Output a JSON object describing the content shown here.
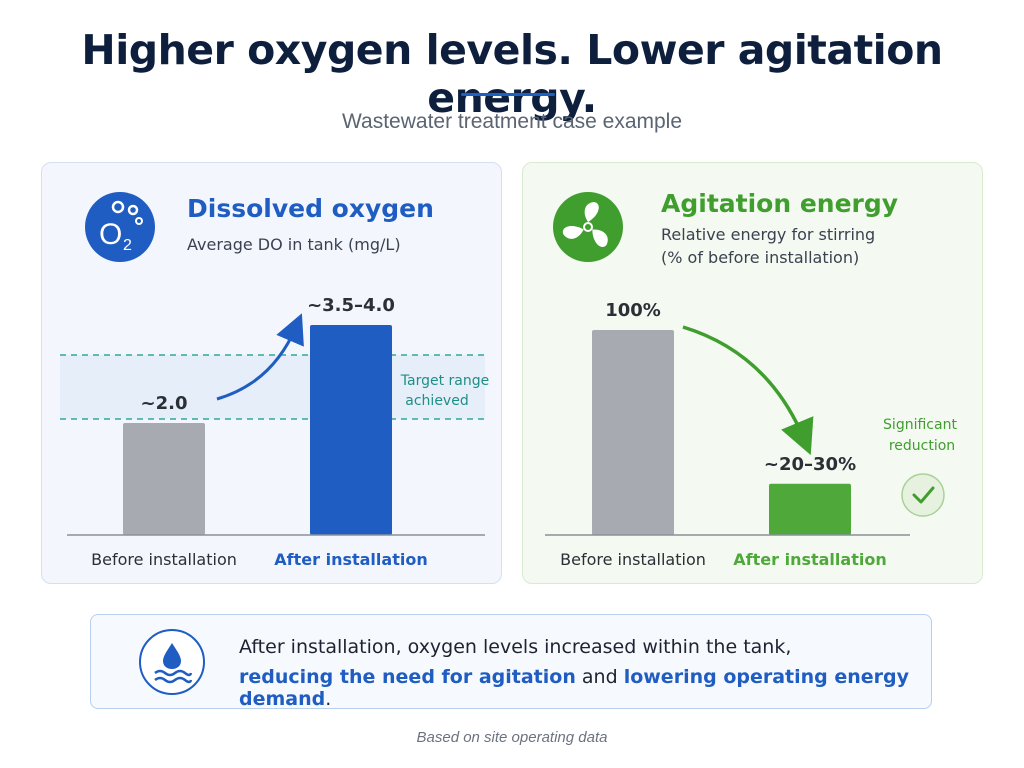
{
  "header": {
    "title": "Higher oxygen levels. Lower agitation energy.",
    "subtitle": "Wastewater treatment case example"
  },
  "panels": {
    "dissolved_oxygen": {
      "title": "Dissolved oxygen",
      "subtitle": "Average DO in tank (mg/L)",
      "icon": "o2-icon",
      "icon_text": "O",
      "icon_subscript": "2",
      "target_note_line1": "Target range",
      "target_note_line2": "achieved",
      "color": "#1f5dc2"
    },
    "agitation_energy": {
      "title": "Agitation energy",
      "subtitle_line1": "Relative energy for stirring",
      "subtitle_line2": "(% of before installation)",
      "icon": "fan-icon",
      "reduction_note_line1": "Significant",
      "reduction_note_line2": "reduction",
      "check_icon": "check-icon",
      "color": "#3f9e2e"
    }
  },
  "chart_data": [
    {
      "type": "bar",
      "title": "Dissolved oxygen",
      "ylabel": "Average DO in tank (mg/L)",
      "categories": [
        "Before installation",
        "After installation"
      ],
      "values": [
        2.0,
        3.75
      ],
      "value_labels": [
        "~2.0",
        "~3.5–4.0"
      ],
      "colors": [
        "#a7abb1",
        "#1f5dc2"
      ],
      "target_band": [
        2.2,
        3.0
      ],
      "ylim": [
        0,
        5
      ],
      "grid": false,
      "legend": "none"
    },
    {
      "type": "bar",
      "title": "Agitation energy",
      "ylabel": "Relative energy for stirring (% of before installation)",
      "categories": [
        "Before installation",
        "After installation"
      ],
      "values": [
        100,
        25
      ],
      "value_labels": [
        "100%",
        "~20–30%"
      ],
      "colors": [
        "#a7abb1",
        "#4ea93a"
      ],
      "ylim": [
        0,
        120
      ],
      "grid": false,
      "legend": "none"
    }
  ],
  "callout": {
    "icon": "water-drop-icon",
    "line1": "After installation, oxygen levels increased within the tank,",
    "line2_part1": "reducing the ",
    "line2_part2": "need for agitation",
    "line2_part3": " and ",
    "line2_part4": "lowering operating energy demand",
    "line2_part5": "."
  },
  "footnote": "Based on site operating data"
}
